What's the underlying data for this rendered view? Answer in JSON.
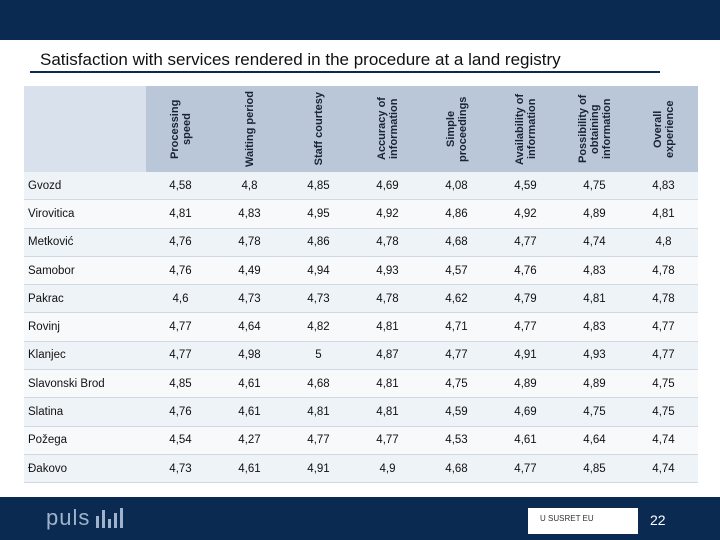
{
  "slide": {
    "title": "Satisfaction with services rendered in the procedure at a land registry",
    "page_number": "22",
    "logo_text": "puls",
    "sponsor_text": "U SUSRET EU"
  },
  "table": {
    "columns": [
      "Processing speed",
      "Waiting period",
      "Staff courtesy",
      "Accuracy of information",
      "Simple proceedings",
      "Availability of information",
      "Possibility of obtaining information",
      "Overall experience"
    ],
    "rows": [
      {
        "name": "Gvozd",
        "values": [
          "4,58",
          "4,8",
          "4,85",
          "4,69",
          "4,08",
          "4,59",
          "4,75",
          "4,83"
        ]
      },
      {
        "name": "Virovitica",
        "values": [
          "4,81",
          "4,83",
          "4,95",
          "4,92",
          "4,86",
          "4,92",
          "4,89",
          "4,81"
        ]
      },
      {
        "name": "Metković",
        "values": [
          "4,76",
          "4,78",
          "4,86",
          "4,78",
          "4,68",
          "4,77",
          "4,74",
          "4,8"
        ]
      },
      {
        "name": "Samobor",
        "values": [
          "4,76",
          "4,49",
          "4,94",
          "4,93",
          "4,57",
          "4,76",
          "4,83",
          "4,78"
        ]
      },
      {
        "name": "Pakrac",
        "values": [
          "4,6",
          "4,73",
          "4,73",
          "4,78",
          "4,62",
          "4,79",
          "4,81",
          "4,78"
        ]
      },
      {
        "name": "Rovinj",
        "values": [
          "4,77",
          "4,64",
          "4,82",
          "4,81",
          "4,71",
          "4,77",
          "4,83",
          "4,77"
        ]
      },
      {
        "name": "Klanjec",
        "values": [
          "4,77",
          "4,98",
          "5",
          "4,87",
          "4,77",
          "4,91",
          "4,93",
          "4,77"
        ]
      },
      {
        "name": "Slavonski Brod",
        "values": [
          "4,85",
          "4,61",
          "4,68",
          "4,81",
          "4,75",
          "4,89",
          "4,89",
          "4,75"
        ]
      },
      {
        "name": "Slatina",
        "values": [
          "4,76",
          "4,61",
          "4,81",
          "4,81",
          "4,59",
          "4,69",
          "4,75",
          "4,75"
        ]
      },
      {
        "name": "Požega",
        "values": [
          "4,54",
          "4,27",
          "4,77",
          "4,77",
          "4,53",
          "4,61",
          "4,64",
          "4,74"
        ]
      },
      {
        "name": "Đakovo",
        "values": [
          "4,73",
          "4,61",
          "4,91",
          "4,9",
          "4,68",
          "4,77",
          "4,85",
          "4,74"
        ]
      }
    ]
  },
  "colors": {
    "header_band": "#0b2a52",
    "column_header_bg": "#b9c7d8",
    "footer_bar": "#0b2a52"
  }
}
